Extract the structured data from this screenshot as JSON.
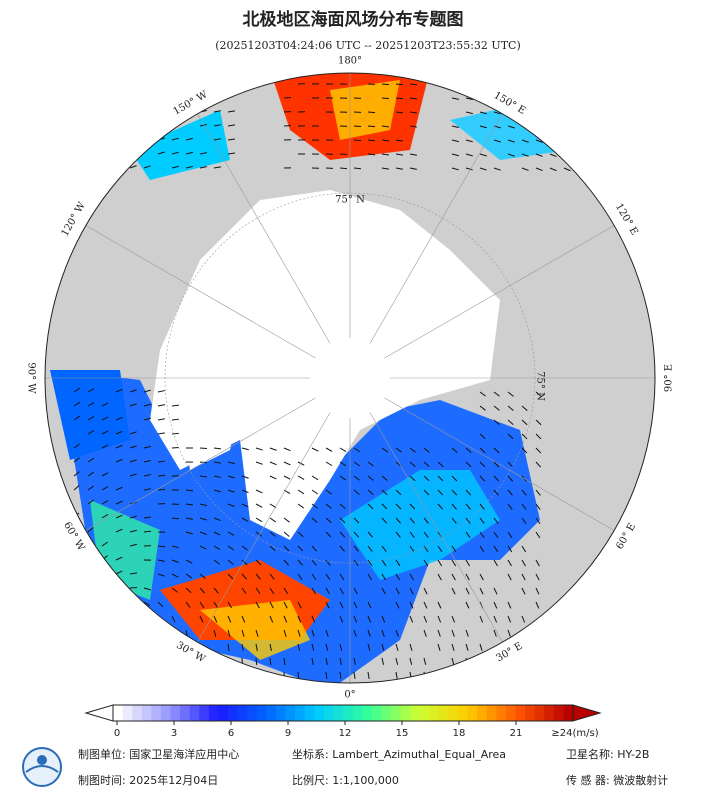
{
  "title": "北极地区海面风场分布专题图",
  "subtitle": "(20251203T04:24:06 UTC -- 20251203T23:55:32 UTC)",
  "longitude_labels": [
    "0°",
    "30° E",
    "60° E",
    "90° E",
    "120° E",
    "150° E",
    "180°",
    "150° W",
    "120° W",
    "90° W",
    "60° W",
    "30° W"
  ],
  "latitude_labels": [
    "75° N",
    "75° N"
  ],
  "colorbar": {
    "ticks": [
      0,
      3,
      6,
      9,
      12,
      15,
      18,
      21
    ],
    "max_label": "≥24(m/s)",
    "colors": [
      "#ffffff",
      "#9a9aff",
      "#1a1aff",
      "#0066ff",
      "#00ccff",
      "#33ff99",
      "#ccff33",
      "#ffcc00",
      "#ff5500",
      "#b80000"
    ]
  },
  "footer": {
    "unit": "制图单位: 国家卫星海洋应用中心",
    "crs": "坐标系: Lambert_Azimuthal_Equal_Area",
    "satellite": "卫星名称: HY-2B",
    "date": "制图时间: 2025年12月04日",
    "scale": "比例尺: 1:1,100,000",
    "sensor": "传 感 器: 微波散射计"
  }
}
